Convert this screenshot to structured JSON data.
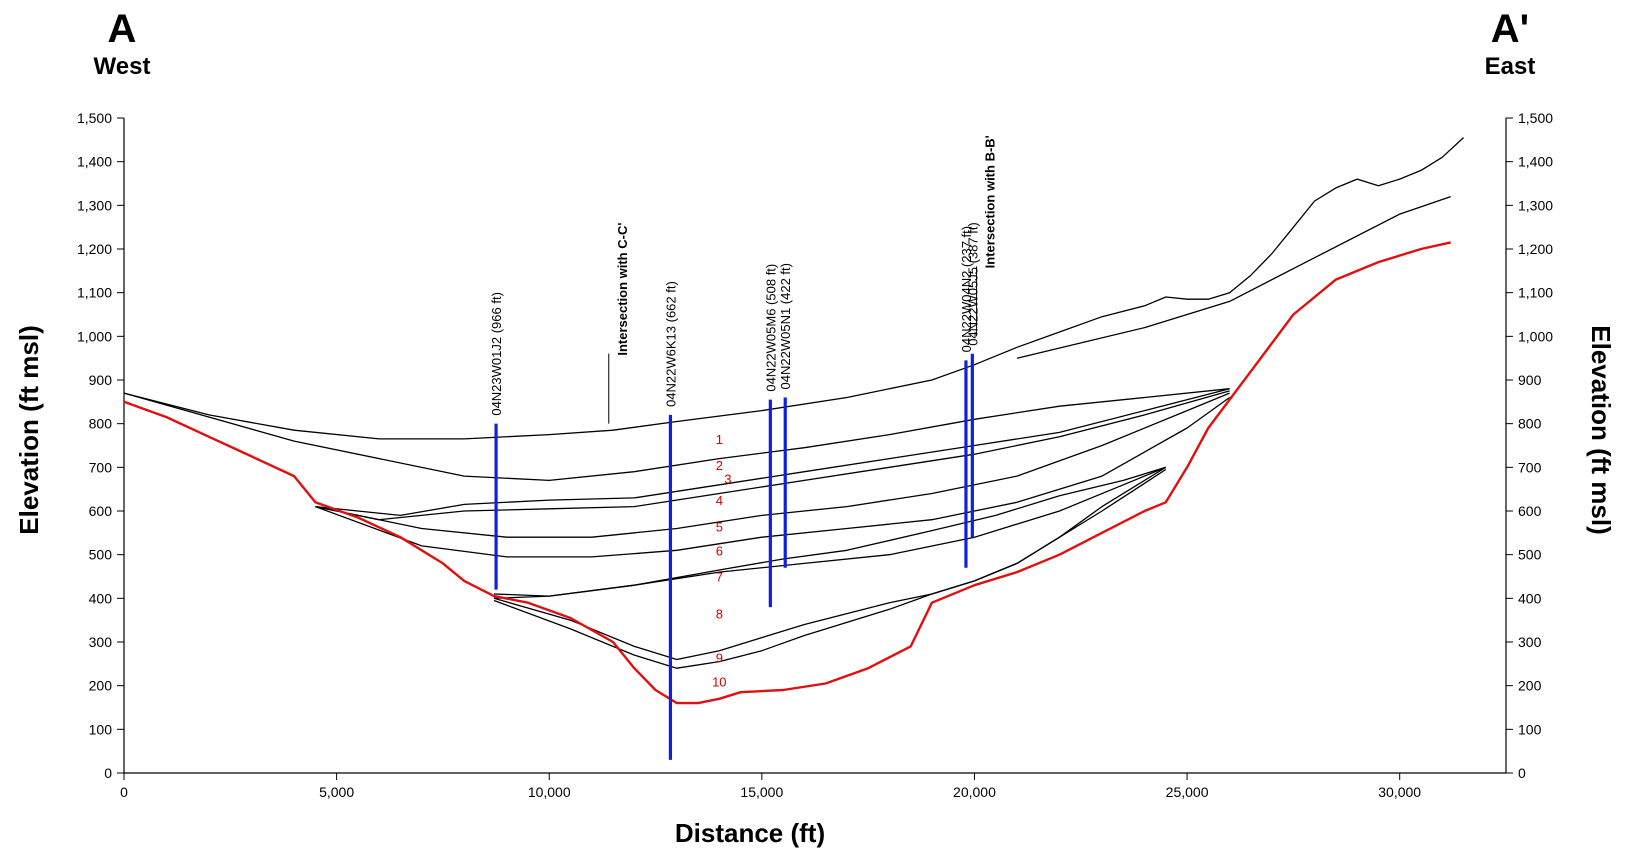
{
  "header": {
    "left_letter": "A",
    "left_direction": "West",
    "right_letter": "A'",
    "right_direction": "East"
  },
  "axes": {
    "xlabel": "Distance (ft)",
    "ylabel_left": "Elevation (ft msl)",
    "ylabel_right": "Elevation (ft msl)",
    "x_ticks": [
      0,
      5000,
      10000,
      15000,
      20000,
      25000,
      30000
    ],
    "x_tick_labels": [
      "0",
      "5,000",
      "10,000",
      "15,000",
      "20,000",
      "25,000",
      "30,000"
    ],
    "y_ticks": [
      0,
      100,
      200,
      300,
      400,
      500,
      600,
      700,
      800,
      900,
      1000,
      1100,
      1200,
      1300,
      1400,
      1500
    ],
    "y_tick_labels": [
      "0",
      "100",
      "200",
      "300",
      "400",
      "500",
      "600",
      "700",
      "800",
      "900",
      "1,000",
      "1,100",
      "1,200",
      "1,300",
      "1,400",
      "1,500"
    ],
    "xlim": [
      0,
      32500
    ],
    "ylim": [
      0,
      1500
    ]
  },
  "chart_data": {
    "type": "line",
    "xlabel": "Distance (ft)",
    "ylabel": "Elevation (ft msl)",
    "xlim": [
      0,
      32500
    ],
    "ylim": [
      0,
      1500
    ],
    "grid": false,
    "series": [
      {
        "role": "ground-surface",
        "color": "#000000",
        "points": [
          [
            0,
            870
          ],
          [
            2000,
            820
          ],
          [
            4000,
            785
          ],
          [
            6000,
            765
          ],
          [
            8000,
            765
          ],
          [
            10000,
            775
          ],
          [
            11500,
            785
          ],
          [
            13000,
            805
          ],
          [
            15000,
            830
          ],
          [
            17000,
            860
          ],
          [
            19000,
            900
          ],
          [
            20000,
            935
          ],
          [
            21000,
            975
          ],
          [
            22000,
            1010
          ],
          [
            23000,
            1045
          ],
          [
            24000,
            1070
          ],
          [
            24500,
            1090
          ],
          [
            25000,
            1085
          ],
          [
            25500,
            1085
          ],
          [
            26000,
            1100
          ],
          [
            26500,
            1140
          ],
          [
            27000,
            1190
          ],
          [
            27500,
            1250
          ],
          [
            28000,
            1310
          ],
          [
            28500,
            1340
          ],
          [
            29000,
            1360
          ],
          [
            29500,
            1345
          ],
          [
            30000,
            1360
          ],
          [
            30500,
            1380
          ],
          [
            31000,
            1410
          ],
          [
            31500,
            1455
          ]
        ]
      },
      {
        "role": "upper-surface-east",
        "color": "#000000",
        "points": [
          [
            21000,
            950
          ],
          [
            24000,
            1020
          ],
          [
            26000,
            1080
          ],
          [
            28000,
            1180
          ],
          [
            30000,
            1280
          ],
          [
            31200,
            1320
          ]
        ]
      },
      {
        "role": "layer-line",
        "color": "#000000",
        "points": [
          [
            0,
            870
          ],
          [
            4000,
            760
          ],
          [
            8000,
            680
          ],
          [
            10000,
            670
          ],
          [
            12000,
            690
          ],
          [
            14000,
            720
          ],
          [
            16000,
            745
          ],
          [
            18000,
            775
          ],
          [
            20000,
            810
          ],
          [
            22000,
            840
          ],
          [
            24000,
            860
          ],
          [
            26000,
            880
          ]
        ]
      },
      {
        "role": "layer-line",
        "color": "#000000",
        "points": [
          [
            4500,
            610
          ],
          [
            6500,
            590
          ],
          [
            8000,
            615
          ],
          [
            10000,
            625
          ],
          [
            12000,
            630
          ],
          [
            14000,
            660
          ],
          [
            16000,
            690
          ],
          [
            18000,
            720
          ],
          [
            20000,
            750
          ],
          [
            22000,
            780
          ],
          [
            24000,
            830
          ],
          [
            26000,
            880
          ]
        ]
      },
      {
        "role": "layer-line",
        "color": "#000000",
        "points": [
          [
            4500,
            610
          ],
          [
            6000,
            580
          ],
          [
            8000,
            600
          ],
          [
            10000,
            605
          ],
          [
            12000,
            610
          ],
          [
            14000,
            640
          ],
          [
            16000,
            670
          ],
          [
            18000,
            700
          ],
          [
            20000,
            730
          ],
          [
            22000,
            770
          ],
          [
            24000,
            820
          ],
          [
            26000,
            875
          ]
        ]
      },
      {
        "role": "layer-line",
        "color": "#000000",
        "points": [
          [
            4500,
            610
          ],
          [
            7000,
            560
          ],
          [
            9000,
            540
          ],
          [
            11000,
            540
          ],
          [
            13000,
            560
          ],
          [
            15000,
            590
          ],
          [
            17000,
            610
          ],
          [
            19000,
            640
          ],
          [
            21000,
            680
          ],
          [
            23000,
            750
          ],
          [
            25000,
            830
          ],
          [
            26000,
            870
          ]
        ]
      },
      {
        "role": "layer-line",
        "color": "#000000",
        "points": [
          [
            4500,
            610
          ],
          [
            7000,
            520
          ],
          [
            9000,
            495
          ],
          [
            11000,
            495
          ],
          [
            13000,
            510
          ],
          [
            15000,
            540
          ],
          [
            17000,
            560
          ],
          [
            19000,
            580
          ],
          [
            21000,
            620
          ],
          [
            23000,
            680
          ],
          [
            25000,
            790
          ],
          [
            26000,
            860
          ]
        ]
      },
      {
        "role": "layer-line",
        "color": "#000000",
        "points": [
          [
            8700,
            410
          ],
          [
            10000,
            405
          ],
          [
            12000,
            430
          ],
          [
            14000,
            465
          ],
          [
            15500,
            490
          ],
          [
            17000,
            510
          ],
          [
            19000,
            555
          ],
          [
            20500,
            590
          ],
          [
            22000,
            635
          ],
          [
            23500,
            670
          ],
          [
            24500,
            700
          ]
        ]
      },
      {
        "role": "layer-line",
        "color": "#000000",
        "points": [
          [
            8700,
            400
          ],
          [
            10000,
            405
          ],
          [
            12000,
            430
          ],
          [
            14000,
            460
          ],
          [
            16000,
            480
          ],
          [
            18000,
            500
          ],
          [
            20000,
            540
          ],
          [
            22000,
            600
          ],
          [
            23500,
            660
          ],
          [
            24500,
            700
          ]
        ]
      },
      {
        "role": "layer-line",
        "color": "#000000",
        "points": [
          [
            8700,
            400
          ],
          [
            10500,
            350
          ],
          [
            12000,
            290
          ],
          [
            13000,
            260
          ],
          [
            14000,
            280
          ],
          [
            15000,
            310
          ],
          [
            16000,
            340
          ],
          [
            17000,
            365
          ],
          [
            18000,
            390
          ],
          [
            19000,
            410
          ],
          [
            20000,
            440
          ],
          [
            21000,
            480
          ],
          [
            22000,
            540
          ],
          [
            23000,
            610
          ],
          [
            24500,
            700
          ]
        ]
      },
      {
        "role": "layer-line",
        "color": "#000000",
        "points": [
          [
            8700,
            395
          ],
          [
            10500,
            330
          ],
          [
            12000,
            270
          ],
          [
            13000,
            240
          ],
          [
            14000,
            255
          ],
          [
            15000,
            280
          ],
          [
            16000,
            315
          ],
          [
            17000,
            345
          ],
          [
            18000,
            375
          ],
          [
            19000,
            410
          ],
          [
            20000,
            440
          ],
          [
            21000,
            480
          ],
          [
            22000,
            540
          ],
          [
            23000,
            600
          ],
          [
            24500,
            695
          ]
        ]
      },
      {
        "role": "aquifer-base",
        "color": "#e01010",
        "points": [
          [
            0,
            850
          ],
          [
            1000,
            815
          ],
          [
            2000,
            770
          ],
          [
            3000,
            725
          ],
          [
            4000,
            680
          ],
          [
            4500,
            620
          ],
          [
            5500,
            585
          ],
          [
            6500,
            540
          ],
          [
            7500,
            480
          ],
          [
            8000,
            440
          ],
          [
            8700,
            405
          ],
          [
            9500,
            390
          ],
          [
            10500,
            355
          ],
          [
            11500,
            300
          ],
          [
            12000,
            240
          ],
          [
            12500,
            190
          ],
          [
            13000,
            160
          ],
          [
            13500,
            160
          ],
          [
            14000,
            170
          ],
          [
            14500,
            185
          ],
          [
            15500,
            190
          ],
          [
            16500,
            205
          ],
          [
            17500,
            240
          ],
          [
            18500,
            290
          ],
          [
            19000,
            390
          ],
          [
            20000,
            430
          ],
          [
            21000,
            460
          ],
          [
            22000,
            500
          ],
          [
            23000,
            550
          ],
          [
            24000,
            600
          ],
          [
            24500,
            620
          ],
          [
            25000,
            700
          ],
          [
            25500,
            790
          ],
          [
            26500,
            920
          ],
          [
            27500,
            1050
          ],
          [
            28500,
            1130
          ],
          [
            29500,
            1170
          ],
          [
            30500,
            1200
          ],
          [
            31200,
            1215
          ]
        ]
      }
    ],
    "wells": [
      {
        "label": "04N23W01J2 (966 ft)",
        "x": 8750,
        "top": 800,
        "bottom": 420
      },
      {
        "label": "04N22W6K13 (662 ft)",
        "x": 12850,
        "top": 820,
        "bottom": 30
      },
      {
        "label": "04N22W05M6 (508 ft)",
        "x": 15200,
        "top": 855,
        "bottom": 380
      },
      {
        "label": "04N22W05N1 (422 ft)",
        "x": 15550,
        "top": 860,
        "bottom": 470
      },
      {
        "label": "04N22W04N2 (237 ft)",
        "x": 19800,
        "top": 945,
        "bottom": 470
      },
      {
        "label": "04N22W05J5 (387 ft)",
        "x": 19950,
        "top": 960,
        "bottom": 540
      }
    ],
    "intersections": [
      {
        "label": "Intersection with C-C'",
        "x": 11400
      },
      {
        "label": "Intersection with B-B'",
        "x": 20050
      }
    ],
    "unit_labels": [
      {
        "label": "1",
        "x": 14000,
        "y": 765
      },
      {
        "label": "2",
        "x": 14000,
        "y": 705
      },
      {
        "label": "3",
        "x": 14200,
        "y": 675
      },
      {
        "label": "4",
        "x": 14000,
        "y": 625
      },
      {
        "label": "5",
        "x": 14000,
        "y": 565
      },
      {
        "label": "6",
        "x": 14000,
        "y": 510
      },
      {
        "label": "7",
        "x": 14000,
        "y": 450
      },
      {
        "label": "8",
        "x": 14000,
        "y": 365
      },
      {
        "label": "9",
        "x": 14000,
        "y": 265
      },
      {
        "label": "10",
        "x": 14000,
        "y": 210
      }
    ],
    "colors": {
      "surfaces": "#000000",
      "base": "#e01010",
      "wells": "#1020e0",
      "units": "#d40000"
    }
  }
}
